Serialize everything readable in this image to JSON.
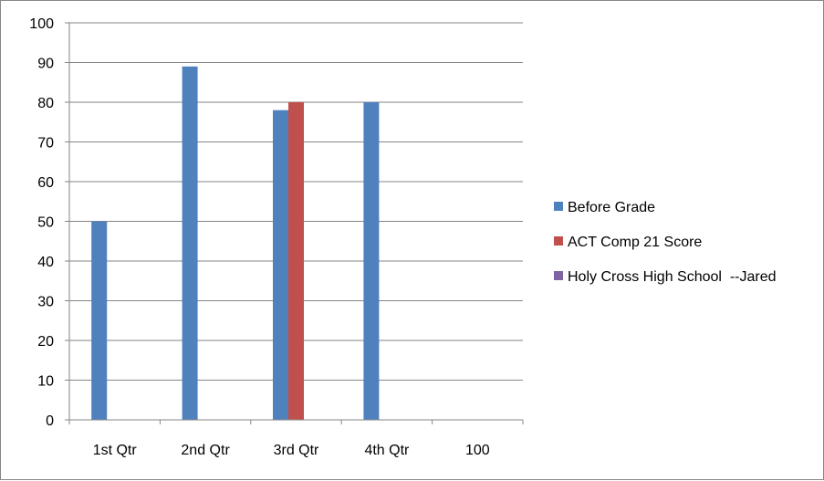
{
  "chart_data": {
    "type": "bar",
    "title": "",
    "xlabel": "",
    "ylabel": "",
    "categories": [
      "1st Qtr",
      "2nd Qtr",
      "3rd Qtr",
      "4th Qtr",
      "100"
    ],
    "ylim": [
      0,
      100
    ],
    "yticks": [
      0,
      10,
      20,
      30,
      40,
      50,
      60,
      70,
      80,
      90,
      100
    ],
    "grid": true,
    "legend_position": "right",
    "series": [
      {
        "name": "Before Grade",
        "color": "#4F81BD",
        "values": [
          50,
          89,
          78,
          80,
          null
        ]
      },
      {
        "name": "ACT Comp 21 Score",
        "color": "#C0504D",
        "values": [
          null,
          null,
          80,
          null,
          null
        ]
      },
      {
        "name": "Holy Cross High School  --Jared",
        "color": "#8064A2",
        "values": [
          null,
          null,
          null,
          null,
          null
        ]
      }
    ]
  }
}
